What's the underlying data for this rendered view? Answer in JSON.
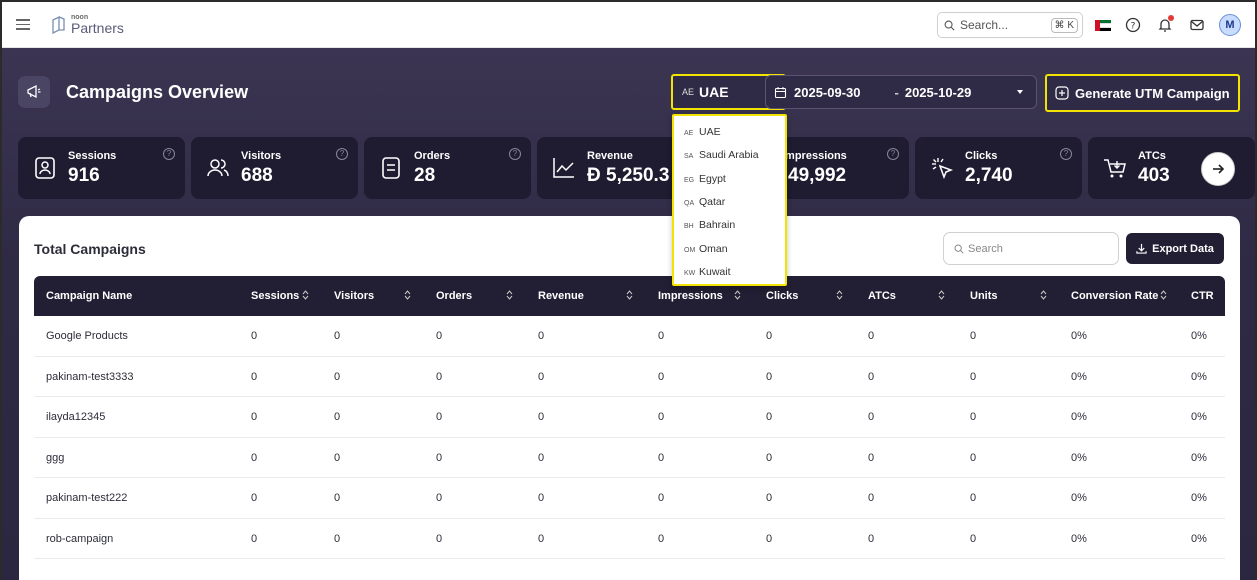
{
  "topbar": {
    "logo_small": "noon",
    "logo_big": "Partners",
    "search_placeholder": "Search...",
    "shortcut": "⌘ K",
    "avatar_initial": "M"
  },
  "header": {
    "title": "Campaigns Overview",
    "country_code": "AE",
    "country_name": "UAE",
    "date_start": "2025-09-30",
    "date_sep": "-",
    "date_end": "2025-10-29",
    "utm_button": "Generate UTM Campaign"
  },
  "stats": [
    {
      "label": "Sessions",
      "value": "916"
    },
    {
      "label": "Visitors",
      "value": "688"
    },
    {
      "label": "Orders",
      "value": "28"
    },
    {
      "label": "Revenue",
      "value": "Đ 5,250.3"
    },
    {
      "label": "Impressions",
      "value": "49,992"
    },
    {
      "label": "Clicks",
      "value": "2,740"
    },
    {
      "label": "ATCs",
      "value": "403"
    }
  ],
  "panel": {
    "title": "Total Campaigns",
    "search_placeholder": "Search",
    "export_label": "Export Data"
  },
  "table": {
    "columns": [
      "Campaign Name",
      "Sessions",
      "Visitors",
      "Orders",
      "Revenue",
      "Impressions",
      "Clicks",
      "ATCs",
      "Units",
      "Conversion Rate",
      "CTR"
    ],
    "rows": [
      [
        "Google Products",
        "0",
        "0",
        "0",
        "0",
        "0",
        "0",
        "0",
        "0",
        "0%",
        "0%"
      ],
      [
        "pakinam-test3333",
        "0",
        "0",
        "0",
        "0",
        "0",
        "0",
        "0",
        "0",
        "0%",
        "0%"
      ],
      [
        "ilayda12345",
        "0",
        "0",
        "0",
        "0",
        "0",
        "0",
        "0",
        "0",
        "0%",
        "0%"
      ],
      [
        "ggg",
        "0",
        "0",
        "0",
        "0",
        "0",
        "0",
        "0",
        "0",
        "0%",
        "0%"
      ],
      [
        "pakinam-test222",
        "0",
        "0",
        "0",
        "0",
        "0",
        "0",
        "0",
        "0",
        "0%",
        "0%"
      ],
      [
        "rob-campaign",
        "0",
        "0",
        "0",
        "0",
        "0",
        "0",
        "0",
        "0",
        "0%",
        "0%"
      ]
    ]
  },
  "country_dropdown": [
    {
      "code": "AE",
      "name": "UAE"
    },
    {
      "code": "SA",
      "name": "Saudi Arabia"
    },
    {
      "code": "EG",
      "name": "Egypt"
    },
    {
      "code": "QA",
      "name": "Qatar"
    },
    {
      "code": "BH",
      "name": "Bahrain"
    },
    {
      "code": "OM",
      "name": "Oman"
    },
    {
      "code": "KW",
      "name": "Kuwait"
    }
  ],
  "colors": {
    "hero_bg": "#2f2a44",
    "card_bg": "#1f1b30",
    "table_header_bg": "#221e33",
    "highlight": "#f2e400"
  }
}
